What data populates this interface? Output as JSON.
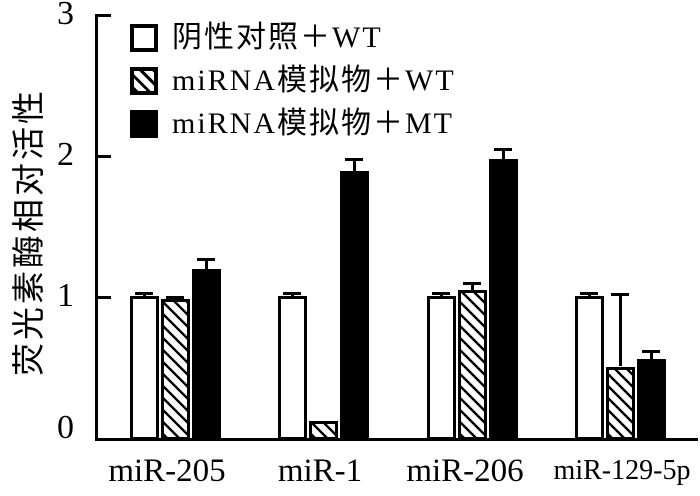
{
  "figure": {
    "background": "#ffffff",
    "ink": "#000000"
  },
  "chart_data": {
    "type": "bar",
    "title": "",
    "xlabel": "",
    "ylabel": "荧光素酶相对活性",
    "ylim": [
      0,
      3
    ],
    "yticks": [
      "0",
      "1",
      "2",
      "3"
    ],
    "grid": false,
    "legend_position": "top-left-inside",
    "error_bars": "upper-cap-only",
    "categories": [
      "miR-205",
      "miR-1",
      "miR-206",
      "miR-129-5p"
    ],
    "series": [
      {
        "name": "阴性对照＋WT",
        "swatch": "white",
        "values": [
          1.0,
          1.0,
          1.0,
          1.0
        ],
        "errors_plus": [
          0.03,
          0.03,
          0.03,
          0.03
        ]
      },
      {
        "name": "miRNA模拟物＋WT",
        "swatch": "hatched-diagonal",
        "values": [
          0.98,
          0.11,
          1.04,
          0.5
        ],
        "errors_plus": [
          0.02,
          0,
          0.06,
          0.52
        ]
      },
      {
        "name": "miRNA模拟物＋MT",
        "swatch": "black",
        "values": [
          1.19,
          1.89,
          1.97,
          0.55
        ],
        "errors_plus": [
          0.08,
          0.09,
          0.08,
          0.07
        ]
      }
    ]
  }
}
